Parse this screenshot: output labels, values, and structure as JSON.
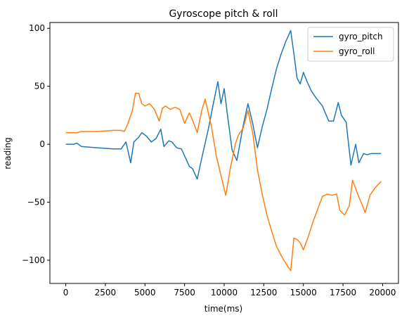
{
  "chart_data": {
    "type": "line",
    "title": "Gyroscope pitch & roll",
    "xlabel": "time(ms)",
    "ylabel": "reading",
    "xlim": [
      -1000,
      21000
    ],
    "ylim": [
      -120,
      105
    ],
    "xticks": [
      0,
      2500,
      5000,
      7500,
      10000,
      12500,
      15000,
      17500,
      20000
    ],
    "yticks": [
      -100,
      -50,
      0,
      50,
      100
    ],
    "grid": false,
    "legend_position": "top-right",
    "series": [
      {
        "name": "gyro_pitch",
        "color": "#1f77b4",
        "x": [
          0,
          500,
          700,
          1000,
          2000,
          3000,
          3500,
          3800,
          4100,
          4300,
          4600,
          4800,
          5100,
          5400,
          5700,
          6000,
          6200,
          6500,
          6700,
          7000,
          7300,
          7800,
          8000,
          8300,
          8600,
          9000,
          9300,
          9600,
          9800,
          10000,
          10200,
          10500,
          10800,
          11200,
          11500,
          11800,
          12100,
          12400,
          12700,
          13000,
          13300,
          13600,
          13900,
          14200,
          14400,
          14600,
          14800,
          15000,
          15200,
          15500,
          15800,
          16200,
          16600,
          16900,
          17200,
          17400,
          17700,
          18000,
          18300,
          18500,
          18800,
          19000,
          19300,
          19600,
          19900
        ],
        "y": [
          0,
          0,
          1,
          -2,
          -3,
          -4,
          -4,
          2,
          -16,
          2,
          6,
          10,
          7,
          2,
          5,
          13,
          -2,
          3,
          2,
          -3,
          -4,
          -19,
          -21,
          -30,
          -11,
          13,
          34,
          54,
          35,
          48,
          26,
          -5,
          -14,
          16,
          35,
          18,
          -3,
          15,
          30,
          48,
          65,
          78,
          89,
          98,
          78,
          57,
          52,
          62,
          55,
          46,
          40,
          33,
          20,
          20,
          36,
          25,
          19,
          -18,
          0,
          -16,
          -8,
          -9,
          -8,
          -8,
          -8
        ]
      },
      {
        "name": "gyro_roll",
        "color": "#ff7f0e",
        "x": [
          0,
          300,
          700,
          1000,
          2000,
          3000,
          3200,
          3500,
          3700,
          3900,
          4200,
          4400,
          4600,
          4800,
          5000,
          5300,
          5600,
          5900,
          6100,
          6300,
          6600,
          6900,
          7200,
          7500,
          7800,
          8000,
          8300,
          8600,
          8800,
          9200,
          9500,
          9800,
          10100,
          10400,
          10700,
          10900,
          11200,
          11500,
          11800,
          12100,
          12400,
          12700,
          13000,
          13300,
          13600,
          13900,
          14200,
          14400,
          14600,
          14800,
          15000,
          15300,
          15600,
          15900,
          16200,
          16500,
          16800,
          17100,
          17300,
          17600,
          17900,
          18100,
          18400,
          18700,
          18900,
          19200,
          19500,
          19900
        ],
        "y": [
          10,
          10,
          10,
          11,
          11,
          12,
          12,
          12,
          11,
          17,
          29,
          44,
          44,
          35,
          33,
          35,
          30,
          20,
          31,
          33,
          30,
          32,
          30,
          18,
          27,
          21,
          10,
          30,
          39,
          15,
          -10,
          -27,
          -44,
          -20,
          0,
          8,
          14,
          29,
          10,
          -22,
          -43,
          -61,
          -75,
          -88,
          -96,
          -103,
          -109,
          -81,
          -82,
          -85,
          -91,
          -80,
          -67,
          -56,
          -45,
          -43,
          -44,
          -43,
          -57,
          -61,
          -53,
          -31,
          -42,
          -52,
          -59,
          -44,
          -38,
          -32
        ]
      }
    ]
  }
}
